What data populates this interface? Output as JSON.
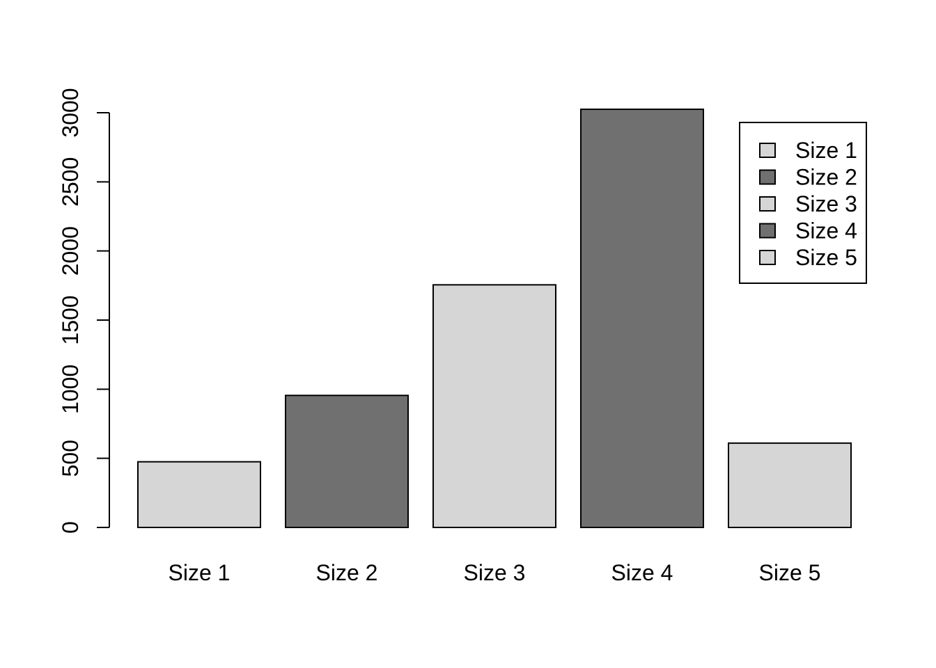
{
  "chart_data": {
    "type": "bar",
    "categories": [
      "Size 1",
      "Size 2",
      "Size 3",
      "Size 4",
      "Size 5"
    ],
    "values": [
      475,
      955,
      1755,
      3025,
      610
    ],
    "colors": [
      "#d6d6d6",
      "#707070",
      "#d6d6d6",
      "#707070",
      "#d6d6d6"
    ],
    "title": "",
    "xlabel": "",
    "ylabel": "",
    "ylim": [
      0,
      3000
    ],
    "yticks": [
      0,
      500,
      1000,
      1500,
      2000,
      2500,
      3000
    ],
    "ytick_labels": [
      "0",
      "500",
      "1000",
      "1500",
      "2000",
      "2500",
      "3000"
    ],
    "grid": false,
    "legend": {
      "position": "top-right",
      "entries": [
        "Size 1",
        "Size 2",
        "Size 3",
        "Size 4",
        "Size 5"
      ]
    }
  }
}
